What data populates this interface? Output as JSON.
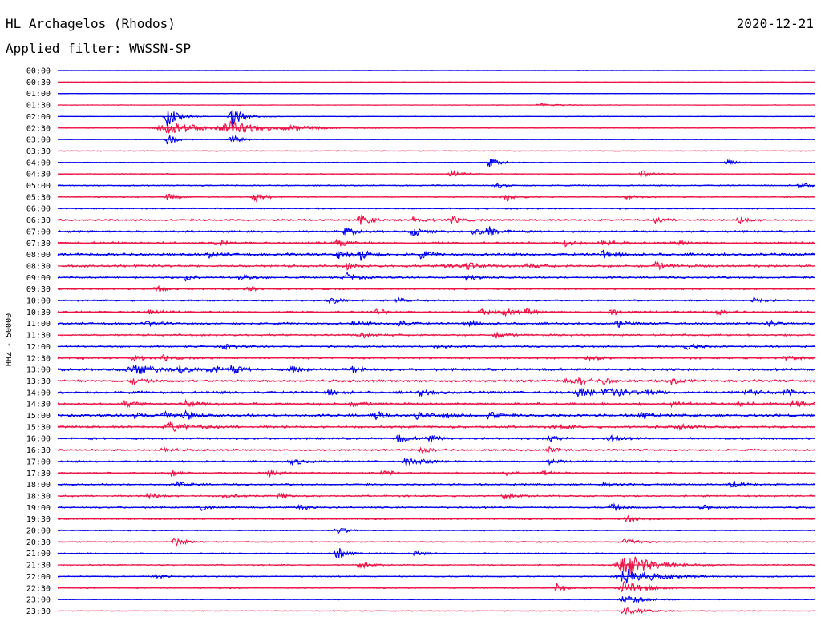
{
  "header": {
    "station": "HL Archagelos (Rhodos)",
    "filter": "Applied filter: WWSSN-SP",
    "date": "2020-12-21"
  },
  "chart_data": {
    "type": "line",
    "title": "HL Archagelos (Rhodos)",
    "subtitle": "Applied filter: WWSSN-SP",
    "ylabel": "HHZ - 50000",
    "date": "2020-12-21",
    "row_interval_minutes": 30,
    "colors": {
      "even_rows": "#0000ee",
      "odd_rows": "#ee1144"
    },
    "rows": [
      {
        "label": "00:00",
        "color": "#0000ee",
        "noise": 0.4,
        "events": []
      },
      {
        "label": "00:30",
        "color": "#ee1144",
        "noise": 0.4,
        "events": []
      },
      {
        "label": "01:00",
        "color": "#0000ee",
        "noise": 0.4,
        "events": []
      },
      {
        "label": "01:30",
        "color": "#ee1144",
        "noise": 0.5,
        "events": [
          [
            0.64,
            0.25,
            0.02
          ]
        ]
      },
      {
        "label": "02:00",
        "color": "#0000ee",
        "noise": 0.5,
        "events": [
          [
            0.145,
            2.2,
            0.01
          ],
          [
            0.23,
            2.6,
            0.01
          ]
        ]
      },
      {
        "label": "02:30",
        "color": "#ee1144",
        "noise": 0.8,
        "events": [
          [
            0.145,
            1.6,
            0.03
          ],
          [
            0.23,
            1.3,
            0.03
          ],
          [
            0.31,
            0.4,
            0.03
          ]
        ]
      },
      {
        "label": "03:00",
        "color": "#0000ee",
        "noise": 0.5,
        "events": [
          [
            0.145,
            1.2,
            0.01
          ],
          [
            0.23,
            1.0,
            0.01
          ]
        ]
      },
      {
        "label": "03:30",
        "color": "#ee1144",
        "noise": 0.6,
        "events": []
      },
      {
        "label": "04:00",
        "color": "#0000ee",
        "noise": 0.6,
        "events": [
          [
            0.57,
            1.2,
            0.01
          ],
          [
            0.885,
            0.6,
            0.01
          ]
        ]
      },
      {
        "label": "04:30",
        "color": "#ee1144",
        "noise": 0.8,
        "events": [
          [
            0.52,
            0.7,
            0.01
          ],
          [
            0.77,
            0.8,
            0.01
          ]
        ]
      },
      {
        "label": "05:00",
        "color": "#0000ee",
        "noise": 1.0,
        "events": [
          [
            0.58,
            0.5,
            0.01
          ],
          [
            0.98,
            0.6,
            0.01
          ]
        ]
      },
      {
        "label": "05:30",
        "color": "#ee1144",
        "noise": 1.0,
        "events": [
          [
            0.145,
            0.7,
            0.01
          ],
          [
            0.26,
            1.0,
            0.01
          ],
          [
            0.59,
            1.0,
            0.01
          ],
          [
            0.75,
            0.6,
            0.01
          ]
        ]
      },
      {
        "label": "06:00",
        "color": "#0000ee",
        "noise": 1.2,
        "events": []
      },
      {
        "label": "06:30",
        "color": "#ee1144",
        "noise": 1.6,
        "events": [
          [
            0.4,
            1.2,
            0.01
          ],
          [
            0.47,
            0.8,
            0.01
          ],
          [
            0.52,
            0.8,
            0.01
          ],
          [
            0.79,
            0.6,
            0.01
          ],
          [
            0.9,
            0.7,
            0.01
          ]
        ]
      },
      {
        "label": "07:00",
        "color": "#0000ee",
        "noise": 1.8,
        "events": [
          [
            0.38,
            0.9,
            0.01
          ],
          [
            0.47,
            1.1,
            0.01
          ],
          [
            0.55,
            0.8,
            0.01
          ],
          [
            0.57,
            1.0,
            0.01
          ]
        ]
      },
      {
        "label": "07:30",
        "color": "#ee1144",
        "noise": 2.0,
        "events": [
          [
            0.21,
            0.6,
            0.01
          ],
          [
            0.37,
            0.9,
            0.01
          ],
          [
            0.67,
            0.8,
            0.01
          ],
          [
            0.72,
            0.8,
            0.01
          ],
          [
            0.82,
            0.6,
            0.01
          ]
        ]
      },
      {
        "label": "08:00",
        "color": "#0000ee",
        "noise": 2.2,
        "events": [
          [
            0.2,
            0.5,
            0.01
          ],
          [
            0.37,
            0.9,
            0.01
          ],
          [
            0.4,
            1.2,
            0.01
          ],
          [
            0.48,
            0.8,
            0.01
          ],
          [
            0.72,
            1.0,
            0.01
          ]
        ]
      },
      {
        "label": "08:30",
        "color": "#ee1144",
        "noise": 2.0,
        "events": [
          [
            0.38,
            0.8,
            0.01
          ],
          [
            0.51,
            0.6,
            0.01
          ],
          [
            0.54,
            0.9,
            0.01
          ],
          [
            0.62,
            0.6,
            0.01
          ],
          [
            0.79,
            0.8,
            0.01
          ]
        ]
      },
      {
        "label": "09:00",
        "color": "#0000ee",
        "noise": 1.6,
        "events": [
          [
            0.17,
            0.8,
            0.01
          ],
          [
            0.24,
            0.7,
            0.01
          ],
          [
            0.38,
            1.0,
            0.01
          ],
          [
            0.54,
            0.6,
            0.01
          ]
        ]
      },
      {
        "label": "09:30",
        "color": "#ee1144",
        "noise": 1.4,
        "events": [
          [
            0.13,
            0.6,
            0.01
          ],
          [
            0.25,
            0.5,
            0.01
          ]
        ]
      },
      {
        "label": "10:00",
        "color": "#0000ee",
        "noise": 1.4,
        "events": [
          [
            0.36,
            0.8,
            0.01
          ],
          [
            0.45,
            0.6,
            0.01
          ],
          [
            0.92,
            0.7,
            0.01
          ]
        ]
      },
      {
        "label": "10:30",
        "color": "#ee1144",
        "noise": 1.8,
        "events": [
          [
            0.12,
            0.5,
            0.01
          ],
          [
            0.42,
            0.6,
            0.01
          ],
          [
            0.56,
            0.6,
            0.01
          ],
          [
            0.59,
            0.7,
            0.01
          ],
          [
            0.62,
            0.7,
            0.01
          ],
          [
            0.73,
            0.6,
            0.01
          ],
          [
            0.87,
            0.5,
            0.01
          ]
        ]
      },
      {
        "label": "11:00",
        "color": "#0000ee",
        "noise": 1.8,
        "events": [
          [
            0.12,
            0.5,
            0.01
          ],
          [
            0.39,
            0.6,
            0.01
          ],
          [
            0.45,
            0.8,
            0.01
          ],
          [
            0.54,
            0.7,
            0.01
          ],
          [
            0.74,
            0.7,
            0.01
          ],
          [
            0.94,
            0.6,
            0.01
          ]
        ]
      },
      {
        "label": "11:30",
        "color": "#ee1144",
        "noise": 1.6,
        "events": [
          [
            0.4,
            0.6,
            0.01
          ],
          [
            0.58,
            0.7,
            0.01
          ]
        ]
      },
      {
        "label": "12:00",
        "color": "#0000ee",
        "noise": 1.4,
        "events": [
          [
            0.22,
            0.6,
            0.01
          ],
          [
            0.5,
            0.6,
            0.01
          ],
          [
            0.83,
            0.8,
            0.01
          ]
        ]
      },
      {
        "label": "12:30",
        "color": "#ee1144",
        "noise": 1.8,
        "events": [
          [
            0.1,
            0.6,
            0.01
          ],
          [
            0.14,
            0.6,
            0.01
          ],
          [
            0.7,
            0.6,
            0.01
          ],
          [
            0.96,
            0.5,
            0.01
          ]
        ]
      },
      {
        "label": "13:00",
        "color": "#0000ee",
        "noise": 2.2,
        "events": [
          [
            0.1,
            1.3,
            0.02
          ],
          [
            0.16,
            0.9,
            0.01
          ],
          [
            0.2,
            0.9,
            0.01
          ],
          [
            0.23,
            0.9,
            0.01
          ],
          [
            0.31,
            0.7,
            0.01
          ],
          [
            0.39,
            0.7,
            0.01
          ]
        ]
      },
      {
        "label": "13:30",
        "color": "#ee1144",
        "noise": 2.0,
        "events": [
          [
            0.1,
            0.7,
            0.01
          ],
          [
            0.67,
            0.6,
            0.01
          ],
          [
            0.69,
            0.7,
            0.01
          ],
          [
            0.72,
            0.6,
            0.01
          ],
          [
            0.81,
            0.6,
            0.01
          ]
        ]
      },
      {
        "label": "14:00",
        "color": "#0000ee",
        "noise": 2.2,
        "events": [
          [
            0.36,
            0.6,
            0.01
          ],
          [
            0.48,
            0.6,
            0.01
          ],
          [
            0.69,
            0.9,
            0.02
          ],
          [
            0.73,
            0.8,
            0.02
          ],
          [
            0.78,
            0.6,
            0.01
          ],
          [
            0.91,
            0.7,
            0.01
          ],
          [
            0.96,
            0.7,
            0.01
          ]
        ]
      },
      {
        "label": "14:30",
        "color": "#ee1144",
        "noise": 2.2,
        "events": [
          [
            0.09,
            0.6,
            0.01
          ],
          [
            0.17,
            0.7,
            0.01
          ],
          [
            0.39,
            0.5,
            0.01
          ],
          [
            0.81,
            0.6,
            0.01
          ],
          [
            0.9,
            0.7,
            0.01
          ],
          [
            0.97,
            0.7,
            0.01
          ]
        ]
      },
      {
        "label": "15:00",
        "color": "#0000ee",
        "noise": 2.2,
        "events": [
          [
            0.1,
            0.7,
            0.01
          ],
          [
            0.14,
            1.0,
            0.01
          ],
          [
            0.17,
            0.8,
            0.01
          ],
          [
            0.42,
            0.8,
            0.01
          ],
          [
            0.475,
            0.8,
            0.01
          ],
          [
            0.51,
            0.7,
            0.01
          ],
          [
            0.57,
            0.8,
            0.01
          ],
          [
            0.77,
            0.8,
            0.01
          ]
        ]
      },
      {
        "label": "15:30",
        "color": "#ee1144",
        "noise": 2.0,
        "events": [
          [
            0.15,
            1.0,
            0.02
          ],
          [
            0.66,
            0.6,
            0.01
          ],
          [
            0.82,
            0.6,
            0.01
          ]
        ]
      },
      {
        "label": "16:00",
        "color": "#0000ee",
        "noise": 1.8,
        "events": [
          [
            0.45,
            0.9,
            0.01
          ],
          [
            0.49,
            0.8,
            0.01
          ],
          [
            0.65,
            0.7,
            0.01
          ],
          [
            0.73,
            0.6,
            0.01
          ]
        ]
      },
      {
        "label": "16:30",
        "color": "#ee1144",
        "noise": 1.6,
        "events": [
          [
            0.14,
            0.5,
            0.01
          ],
          [
            0.48,
            0.6,
            0.01
          ],
          [
            0.65,
            0.6,
            0.01
          ]
        ]
      },
      {
        "label": "17:00",
        "color": "#0000ee",
        "noise": 1.6,
        "events": [
          [
            0.31,
            0.8,
            0.01
          ],
          [
            0.46,
            0.8,
            0.01
          ],
          [
            0.48,
            0.6,
            0.01
          ],
          [
            0.65,
            0.7,
            0.01
          ]
        ]
      },
      {
        "label": "17:30",
        "color": "#ee1144",
        "noise": 1.4,
        "events": [
          [
            0.15,
            0.7,
            0.01
          ],
          [
            0.28,
            0.7,
            0.01
          ],
          [
            0.43,
            0.6,
            0.01
          ],
          [
            0.59,
            0.6,
            0.01
          ],
          [
            0.64,
            0.5,
            0.01
          ]
        ]
      },
      {
        "label": "18:00",
        "color": "#0000ee",
        "noise": 1.4,
        "events": [
          [
            0.16,
            0.6,
            0.01
          ],
          [
            0.72,
            0.5,
            0.01
          ],
          [
            0.89,
            0.7,
            0.01
          ]
        ]
      },
      {
        "label": "18:30",
        "color": "#ee1144",
        "noise": 1.4,
        "events": [
          [
            0.12,
            0.7,
            0.01
          ],
          [
            0.22,
            0.6,
            0.01
          ],
          [
            0.29,
            0.6,
            0.01
          ],
          [
            0.59,
            0.6,
            0.01
          ]
        ]
      },
      {
        "label": "19:00",
        "color": "#0000ee",
        "noise": 1.4,
        "events": [
          [
            0.19,
            0.6,
            0.01
          ],
          [
            0.32,
            0.7,
            0.01
          ],
          [
            0.73,
            0.8,
            0.01
          ],
          [
            0.85,
            0.5,
            0.01
          ]
        ]
      },
      {
        "label": "19:30",
        "color": "#ee1144",
        "noise": 1.2,
        "events": [
          [
            0.75,
            1.0,
            0.01
          ]
        ]
      },
      {
        "label": "20:00",
        "color": "#0000ee",
        "noise": 1.0,
        "events": [
          [
            0.37,
            0.8,
            0.01
          ]
        ]
      },
      {
        "label": "20:30",
        "color": "#ee1144",
        "noise": 1.0,
        "events": [
          [
            0.155,
            1.0,
            0.01
          ],
          [
            0.75,
            1.2,
            0.01
          ]
        ]
      },
      {
        "label": "21:00",
        "color": "#0000ee",
        "noise": 1.0,
        "events": [
          [
            0.37,
            1.3,
            0.01
          ],
          [
            0.47,
            0.6,
            0.01
          ]
        ]
      },
      {
        "label": "21:30",
        "color": "#ee1144",
        "noise": 1.0,
        "events": [
          [
            0.4,
            0.6,
            0.01
          ],
          [
            0.75,
            2.8,
            0.025
          ]
        ]
      },
      {
        "label": "22:00",
        "color": "#0000ee",
        "noise": 1.0,
        "events": [
          [
            0.13,
            0.5,
            0.01
          ],
          [
            0.75,
            1.8,
            0.03
          ]
        ]
      },
      {
        "label": "22:30",
        "color": "#ee1144",
        "noise": 1.0,
        "events": [
          [
            0.66,
            1.0,
            0.01
          ],
          [
            0.75,
            1.5,
            0.02
          ]
        ]
      },
      {
        "label": "23:00",
        "color": "#0000ee",
        "noise": 0.7,
        "events": [
          [
            0.75,
            1.0,
            0.02
          ]
        ]
      },
      {
        "label": "23:30",
        "color": "#ee1144",
        "noise": 0.6,
        "events": [
          [
            0.75,
            0.8,
            0.02
          ]
        ]
      }
    ]
  }
}
